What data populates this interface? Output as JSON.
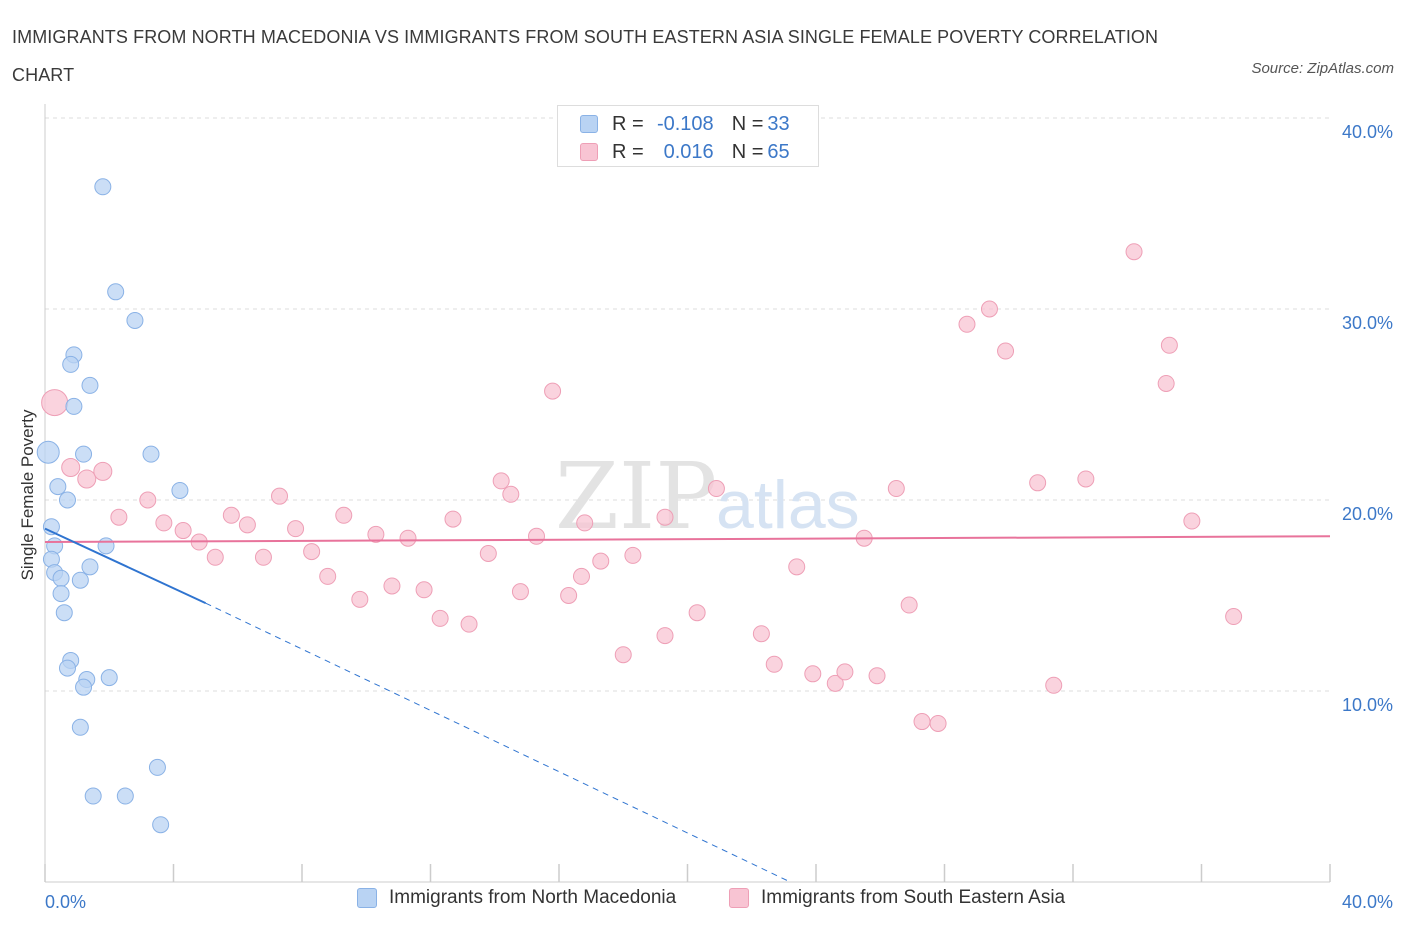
{
  "title": "IMMIGRANTS FROM NORTH MACEDONIA VS IMMIGRANTS FROM SOUTH EASTERN ASIA SINGLE FEMALE POVERTY CORRELATION CHART",
  "source": "Source: ZipAtlas.com",
  "watermark": {
    "zip": "ZIP",
    "atlas": "atlas"
  },
  "legend_top": {
    "rows": [
      {
        "r_label": "R =",
        "r_value": "-0.108",
        "n_label": "N =",
        "n_value": "33"
      },
      {
        "r_label": "R =",
        "r_value": "0.016",
        "n_label": "N =",
        "n_value": "65"
      }
    ]
  },
  "colors": {
    "blue_fill": "#b9d3f3",
    "blue_stroke": "#8ab2e6",
    "blue_line": "#2f74d0",
    "pink_fill": "#f8c4d3",
    "pink_stroke": "#ee9fb6",
    "pink_line": "#e8739b",
    "axis_text": "#3c78c8",
    "grid": "#dcdcdc"
  },
  "chart_data": {
    "type": "scatter",
    "title": "IMMIGRANTS FROM NORTH MACEDONIA VS IMMIGRANTS FROM SOUTH EASTERN ASIA SINGLE FEMALE POVERTY CORRELATION CHART",
    "xlabel": "",
    "ylabel": "Single Female Poverty",
    "xlim": [
      0,
      40
    ],
    "ylim": [
      0,
      40
    ],
    "x_tick_labels": [
      {
        "value": 0,
        "label": "0.0%"
      },
      {
        "value": 40,
        "label": "40.0%"
      }
    ],
    "y_tick_labels": [
      {
        "value": 10,
        "label": "10.0%"
      },
      {
        "value": 20,
        "label": "20.0%"
      },
      {
        "value": 30,
        "label": "30.0%"
      },
      {
        "value": 40,
        "label": "40.0%"
      }
    ],
    "series": [
      {
        "name": "Immigrants from North Macedonia",
        "color": "blue",
        "points": [
          [
            1.8,
            36.4
          ],
          [
            2.2,
            30.9
          ],
          [
            2.8,
            29.4
          ],
          [
            0.9,
            27.6
          ],
          [
            0.8,
            27.1
          ],
          [
            1.4,
            26.0
          ],
          [
            0.9,
            24.9
          ],
          [
            0.1,
            22.5
          ],
          [
            1.2,
            22.4
          ],
          [
            3.3,
            22.4
          ],
          [
            0.4,
            20.7
          ],
          [
            4.2,
            20.5
          ],
          [
            0.7,
            20.0
          ],
          [
            0.2,
            18.6
          ],
          [
            0.3,
            17.6
          ],
          [
            1.9,
            17.6
          ],
          [
            0.2,
            16.9
          ],
          [
            0.3,
            16.2
          ],
          [
            1.4,
            16.5
          ],
          [
            0.5,
            15.9
          ],
          [
            1.1,
            15.8
          ],
          [
            0.5,
            15.1
          ],
          [
            0.6,
            14.1
          ],
          [
            0.8,
            11.6
          ],
          [
            0.7,
            11.2
          ],
          [
            1.3,
            10.6
          ],
          [
            2.0,
            10.7
          ],
          [
            1.2,
            10.2
          ],
          [
            1.1,
            8.1
          ],
          [
            3.5,
            6.0
          ],
          [
            1.5,
            4.5
          ],
          [
            2.5,
            4.5
          ],
          [
            3.6,
            3.0
          ]
        ],
        "sizes": [
          16,
          16,
          16,
          16,
          16,
          16,
          16,
          22,
          16,
          16,
          16,
          16,
          16,
          16,
          16,
          16,
          16,
          16,
          16,
          16,
          16,
          16,
          16,
          16,
          16,
          16,
          16,
          16,
          16,
          16,
          16,
          16,
          16
        ],
        "trend": {
          "x0": 0,
          "y0": 18.5,
          "x1": 5.0,
          "y1": 14.6,
          "dash_to_x": 23.2,
          "dash_to_y": 0
        }
      },
      {
        "name": "Immigrants from South Eastern Asia",
        "color": "pink",
        "points": [
          [
            0.3,
            25.1
          ],
          [
            0.8,
            21.7
          ],
          [
            1.3,
            21.1
          ],
          [
            1.8,
            21.5
          ],
          [
            2.3,
            19.1
          ],
          [
            3.2,
            20.0
          ],
          [
            3.7,
            18.8
          ],
          [
            4.3,
            18.4
          ],
          [
            4.8,
            17.8
          ],
          [
            5.3,
            17.0
          ],
          [
            5.8,
            19.2
          ],
          [
            6.3,
            18.7
          ],
          [
            6.8,
            17.0
          ],
          [
            7.3,
            20.2
          ],
          [
            7.8,
            18.5
          ],
          [
            8.3,
            17.3
          ],
          [
            8.8,
            16.0
          ],
          [
            9.3,
            19.2
          ],
          [
            9.8,
            14.8
          ],
          [
            10.3,
            18.2
          ],
          [
            10.8,
            15.5
          ],
          [
            11.3,
            18.0
          ],
          [
            11.8,
            15.3
          ],
          [
            12.3,
            13.8
          ],
          [
            12.7,
            19.0
          ],
          [
            13.2,
            13.5
          ],
          [
            13.8,
            17.2
          ],
          [
            14.2,
            21.0
          ],
          [
            14.8,
            15.2
          ],
          [
            15.3,
            18.1
          ],
          [
            15.8,
            25.7
          ],
          [
            16.3,
            15.0
          ],
          [
            16.8,
            18.8
          ],
          [
            16.7,
            16.0
          ],
          [
            17.3,
            16.8
          ],
          [
            18.3,
            17.1
          ],
          [
            18.0,
            11.9
          ],
          [
            19.3,
            19.1
          ],
          [
            19.3,
            12.9
          ],
          [
            20.3,
            14.1
          ],
          [
            20.9,
            20.6
          ],
          [
            22.3,
            13.0
          ],
          [
            22.7,
            11.4
          ],
          [
            23.4,
            16.5
          ],
          [
            23.9,
            10.9
          ],
          [
            24.6,
            10.4
          ],
          [
            24.9,
            11.0
          ],
          [
            25.5,
            18.0
          ],
          [
            25.9,
            10.8
          ],
          [
            26.5,
            20.6
          ],
          [
            26.9,
            14.5
          ],
          [
            27.3,
            8.4
          ],
          [
            27.8,
            8.3
          ],
          [
            28.7,
            29.2
          ],
          [
            29.4,
            30.0
          ],
          [
            29.9,
            27.8
          ],
          [
            30.9,
            20.9
          ],
          [
            31.4,
            10.3
          ],
          [
            32.4,
            21.1
          ],
          [
            33.9,
            33.0
          ],
          [
            34.9,
            26.1
          ],
          [
            35.0,
            28.1
          ],
          [
            35.7,
            18.9
          ],
          [
            37.0,
            13.9
          ],
          [
            14.5,
            20.3
          ]
        ],
        "sizes": [
          26,
          18,
          18,
          18,
          16,
          16,
          16,
          16,
          16,
          16,
          16,
          16,
          16,
          16,
          16,
          16,
          16,
          16,
          16,
          16,
          16,
          16,
          16,
          16,
          16,
          16,
          16,
          16,
          16,
          16,
          16,
          16,
          16,
          16,
          16,
          16,
          16,
          16,
          16,
          16,
          16,
          16,
          16,
          16,
          16,
          16,
          16,
          16,
          16,
          16,
          16,
          16,
          16,
          16,
          16,
          16,
          16,
          16,
          16,
          16,
          16,
          16,
          16,
          16,
          16
        ],
        "trend": {
          "x0": 0,
          "y0": 17.8,
          "x1": 40,
          "y1": 18.1
        }
      }
    ]
  },
  "bottom_legend": {
    "items": [
      {
        "label": "Immigrants from North Macedonia"
      },
      {
        "label": "Immigrants from South Eastern Asia"
      }
    ]
  }
}
